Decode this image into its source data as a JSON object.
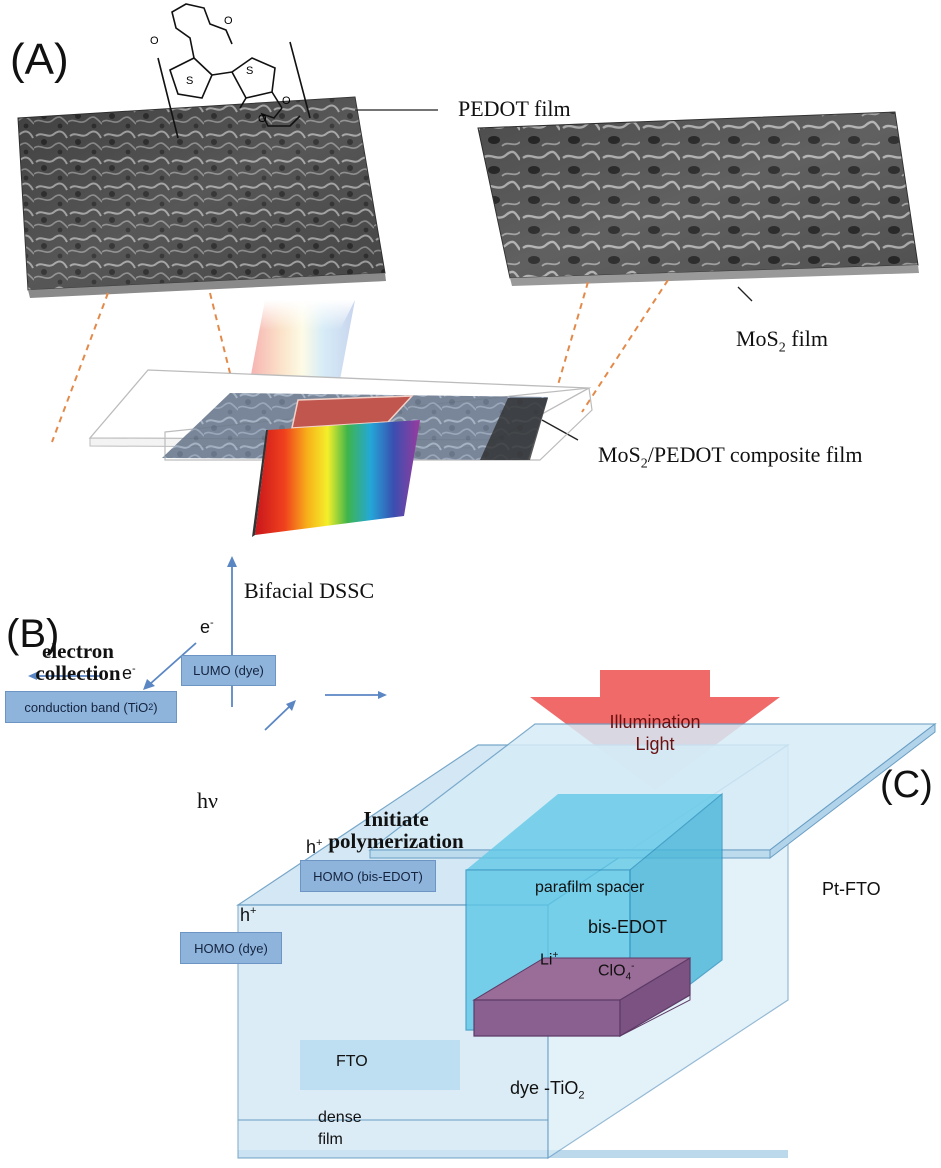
{
  "panel_a": {
    "label": "(A)",
    "pedot_film": "PEDOT film",
    "mos2_film": "MoS",
    "mos2_sub": "2",
    "mos2_suffix": " film",
    "composite_prefix": "MoS",
    "composite_sub": "2",
    "composite_suffix": "/PEDOT composite film",
    "device": "Bifacial DSSC"
  },
  "panel_b": {
    "label": "(B)",
    "electron_collection_1": "electron",
    "electron_collection_2": "collection",
    "e_minus_top": "e",
    "e_minus_side": "e",
    "minus": "-",
    "lumo": "LUMO (dye)",
    "conduction_band": "conduction band (TiO",
    "conduction_sub": "2",
    "conduction_close": ")",
    "hv": "hν",
    "h_plus_1": "h",
    "h_plus_2": "h",
    "plus": "+",
    "initiate_1": "Initiate",
    "initiate_2": "polymerization",
    "homo_bis_edot": "HOMO (bis-EDOT)",
    "homo_dye": "HOMO (dye)"
  },
  "panel_c": {
    "label": "(C)",
    "illumination_1": "Illumination",
    "illumination_2": "Light",
    "pt_fto": "Pt-FTO",
    "parafilm": "parafilm spacer",
    "bis_edot": "bis-EDOT",
    "li": "Li",
    "li_plus": "+",
    "clo4": "ClO",
    "clo4_sub": "4",
    "clo4_minus": "-",
    "fto": "FTO",
    "dye_tio2": "dye -TiO",
    "dye_sub": "2",
    "dense_1": "dense",
    "dense_2": "film"
  },
  "colors": {
    "arrow_blue": "#5b86c4",
    "box_blue": "#8fb4dc",
    "illumination_red": "#f06a6a",
    "glass": "#cfe6f3",
    "cyan": "#5bc7e6",
    "purple": "#8a6090",
    "dashed": "#e38a4a"
  }
}
